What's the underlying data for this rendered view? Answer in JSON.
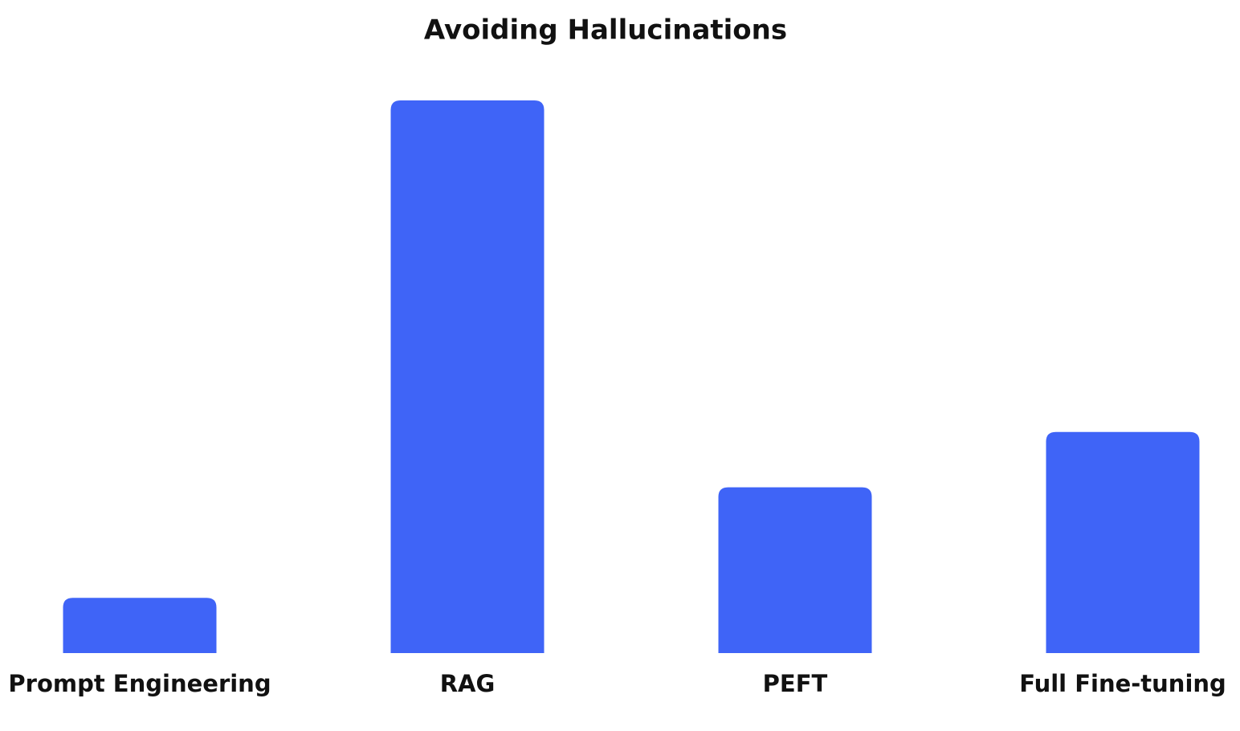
{
  "chart_data": {
    "type": "bar",
    "title": "Avoiding Hallucinations",
    "categories": [
      "Prompt Engineering",
      "RAG",
      "PEFT",
      "Full Fine-tuning"
    ],
    "values": [
      1,
      10,
      3,
      4
    ],
    "color": "#3f64f7"
  }
}
